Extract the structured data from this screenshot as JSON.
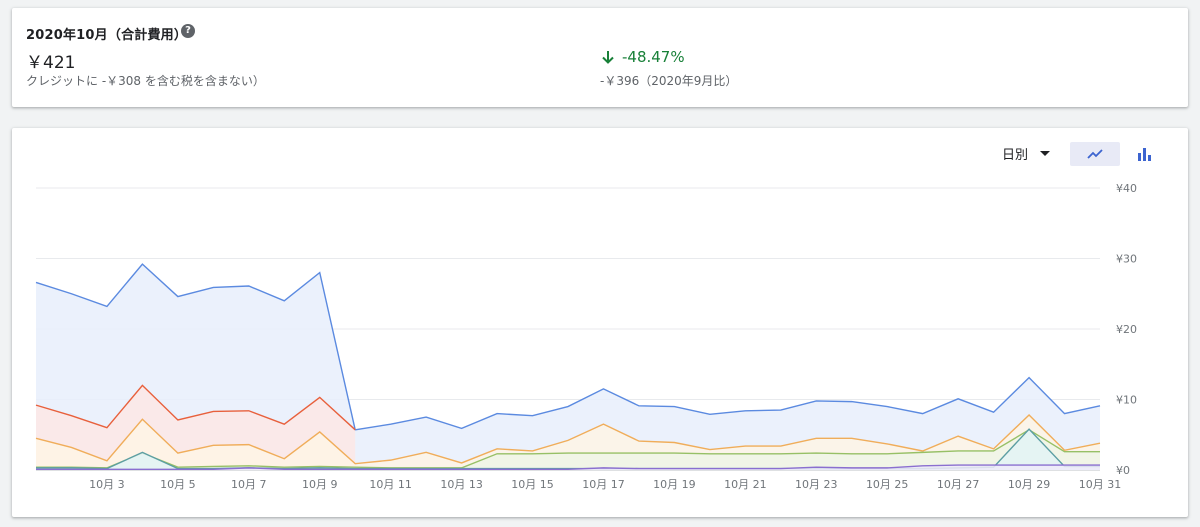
{
  "summary": {
    "title": "2020年10月（合計費用）",
    "help_icon": "?",
    "total": "￥421",
    "credit_note": "クレジットに -￥308 を含む税を含まない）",
    "change": "-48.47%",
    "change_color": "#188038",
    "previous": "-￥396（2020年9月比）"
  },
  "toolbar": {
    "period_label": "日別",
    "line_view_icon": "line-chart-icon",
    "bar_view_icon": "bar-chart-icon"
  },
  "chart_data": {
    "type": "area",
    "stacked": true,
    "days": [
      1,
      2,
      3,
      4,
      5,
      6,
      7,
      8,
      9,
      10,
      11,
      12,
      13,
      14,
      15,
      16,
      17,
      18,
      19,
      20,
      21,
      22,
      23,
      24,
      25,
      26,
      27,
      28,
      29,
      30,
      31
    ],
    "x_tick_labels": [
      "10月 3",
      "10月 5",
      "10月 7",
      "10月 9",
      "10月 11",
      "10月 13",
      "10月 15",
      "10月 17",
      "10月 19",
      "10月 21",
      "10月 23",
      "10月 25",
      "10月 27",
      "10月 29",
      "10月 31"
    ],
    "x_tick_days": [
      3,
      5,
      7,
      9,
      11,
      13,
      15,
      17,
      19,
      21,
      23,
      25,
      27,
      29,
      31
    ],
    "y_ticks": [
      "¥0",
      "¥10",
      "¥20",
      "¥30",
      "¥40"
    ],
    "y_tick_values": [
      0,
      10,
      20,
      30,
      40
    ],
    "ylim": [
      0,
      40
    ],
    "y_axis_side": "right",
    "grid": true,
    "series": [
      {
        "color": "#ec9c94",
        "line": "#e8603c",
        "fill": "#fde8e5",
        "stacked_top": [
          9.2,
          7.7,
          6.0,
          12.0,
          7.1,
          8.3,
          8.4,
          6.5,
          10.3,
          0,
          0,
          0,
          0,
          0,
          0,
          0,
          0,
          0,
          0,
          0,
          0,
          0,
          0,
          0,
          0,
          0,
          0,
          0,
          0,
          0,
          0
        ]
      },
      {
        "color": "#f0ad5a",
        "line": "#f0ad5a",
        "fill": "#fef4e5",
        "stacked_top": [
          4.5,
          3.2,
          1.3,
          7.2,
          2.4,
          3.5,
          3.6,
          1.6,
          5.4,
          0.9,
          1.4,
          2.5,
          1.0,
          3.0,
          2.7,
          4.2,
          6.5,
          4.1,
          3.9,
          2.9,
          3.4,
          3.4,
          4.5,
          4.5,
          3.7,
          2.7,
          4.8,
          3.0,
          7.8,
          2.8,
          3.8
        ]
      },
      {
        "color": "#97c066",
        "line": "#97c066",
        "fill": "#eef5e6",
        "stacked_top": [
          0.4,
          0.4,
          0.3,
          2.4,
          0.4,
          0.5,
          0.6,
          0.4,
          0.5,
          0.4,
          0.3,
          0.3,
          0.3,
          2.3,
          2.3,
          2.4,
          2.4,
          2.4,
          2.4,
          2.3,
          2.3,
          2.3,
          2.4,
          2.3,
          2.3,
          2.5,
          2.7,
          2.7,
          5.7,
          2.6,
          2.6
        ]
      },
      {
        "color": "#5c9ea3",
        "line": "#5c9ea3",
        "fill": "#e3f3f4",
        "stacked_top": [
          0.3,
          0.3,
          0.2,
          2.5,
          0.2,
          0.2,
          0.3,
          0.2,
          0.3,
          0.2,
          0.2,
          0.2,
          0.2,
          0.2,
          0.2,
          0.2,
          0.2,
          0.2,
          0.2,
          0.2,
          0.2,
          0.2,
          0.2,
          0.2,
          0.2,
          0.2,
          0.3,
          0.4,
          5.8,
          0.5,
          0.5
        ]
      },
      {
        "color": "#8a6fd0",
        "line": "#8a6fd0",
        "fill": "#efeaf9",
        "stacked_top": [
          0.1,
          0.1,
          0.1,
          0.1,
          0.1,
          0.1,
          0.3,
          0.1,
          0.1,
          0.1,
          0.1,
          0.1,
          0.1,
          0.1,
          0.1,
          0.1,
          0.3,
          0.2,
          0.2,
          0.2,
          0.2,
          0.2,
          0.4,
          0.3,
          0.3,
          0.6,
          0.7,
          0.7,
          0.7,
          0.7,
          0.7
        ]
      },
      {
        "color": "#5b8ae0",
        "line": "#5b8ae0",
        "fill": "#e8eefc",
        "stacked_top": [
          26.6,
          25.0,
          23.2,
          29.2,
          24.6,
          25.9,
          26.1,
          24.0,
          28.0,
          5.7,
          6.5,
          7.5,
          5.9,
          8.0,
          7.7,
          9.0,
          11.5,
          9.1,
          9.0,
          7.9,
          8.4,
          8.5,
          9.8,
          9.7,
          9.0,
          8.0,
          10.1,
          8.2,
          13.1,
          8.0,
          9.1
        ]
      }
    ]
  }
}
